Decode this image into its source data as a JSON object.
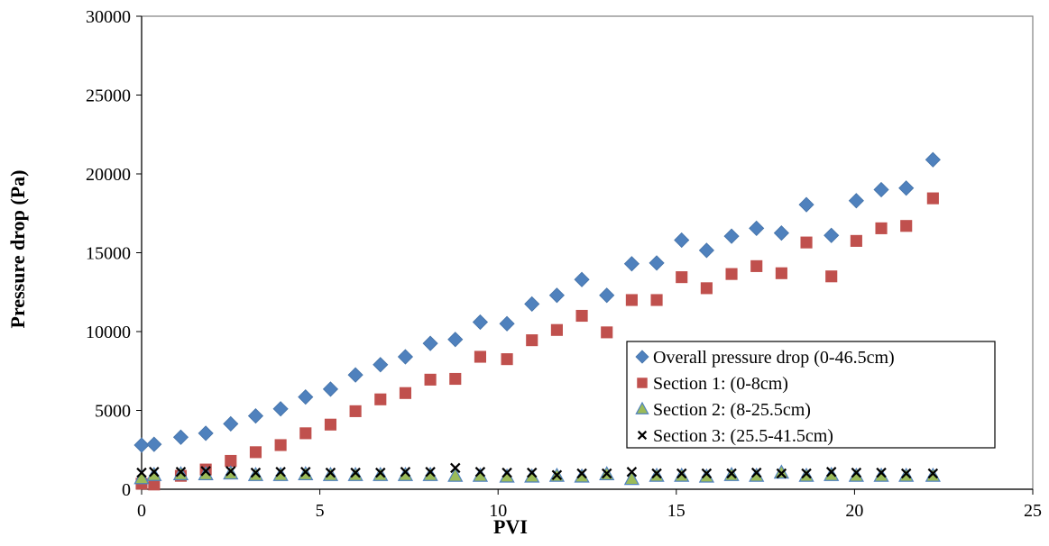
{
  "chart_data": {
    "type": "scatter",
    "title": "",
    "xlabel": "PVI",
    "ylabel": "Pressure drop (Pa)",
    "xlim": [
      0,
      25
    ],
    "ylim": [
      0,
      30000
    ],
    "xticks": [
      0,
      5,
      10,
      15,
      20,
      25
    ],
    "yticks": [
      0,
      5000,
      10000,
      15000,
      20000,
      25000,
      30000
    ],
    "grid": false,
    "legend_position": "lower-right",
    "series": [
      {
        "name": "Overall pressure drop (0-46.5cm)",
        "marker": "diamond",
        "color": "#4F81BD",
        "x": [
          0,
          0.35,
          1.1,
          1.8,
          2.5,
          3.2,
          3.9,
          4.6,
          5.3,
          6.0,
          6.7,
          7.4,
          8.1,
          8.8,
          9.5,
          10.25,
          10.95,
          11.65,
          12.35,
          13.05,
          13.75,
          14.45,
          15.15,
          15.85,
          16.55,
          17.25,
          17.95,
          18.65,
          19.35,
          20.05,
          20.75,
          21.45,
          22.2
        ],
        "y": [
          2800,
          2850,
          3300,
          3550,
          4150,
          4650,
          5100,
          5850,
          6350,
          7250,
          7900,
          8400,
          9250,
          9500,
          10600,
          10500,
          11750,
          12300,
          13300,
          12300,
          14300,
          14350,
          15800,
          15150,
          16050,
          16550,
          16250,
          18050,
          16100,
          18300,
          19000,
          19100,
          20900
        ]
      },
      {
        "name": "Section 1: (0-8cm)",
        "marker": "square",
        "color": "#C0504D",
        "x": [
          0,
          0.35,
          1.1,
          1.8,
          2.5,
          3.2,
          3.9,
          4.6,
          5.3,
          6.0,
          6.7,
          7.4,
          8.1,
          8.8,
          9.5,
          10.25,
          10.95,
          11.65,
          12.35,
          13.05,
          13.75,
          14.45,
          15.15,
          15.85,
          16.55,
          17.25,
          17.95,
          18.65,
          19.35,
          20.05,
          20.75,
          21.45,
          22.2
        ],
        "y": [
          350,
          300,
          850,
          1250,
          1800,
          2350,
          2800,
          3550,
          4100,
          4950,
          5700,
          6100,
          6950,
          7000,
          8400,
          8250,
          9450,
          10100,
          11000,
          9950,
          12000,
          12000,
          13450,
          12750,
          13650,
          14150,
          13700,
          15650,
          13500,
          15750,
          16550,
          16700,
          18450
        ]
      },
      {
        "name": "Section 2: (8-25.5cm)",
        "marker": "triangle",
        "color": "#9BBB59",
        "x": [
          0,
          0.35,
          1.1,
          1.8,
          2.5,
          3.2,
          3.9,
          4.6,
          5.3,
          6.0,
          6.7,
          7.4,
          8.1,
          8.8,
          9.5,
          10.25,
          10.95,
          11.65,
          12.35,
          13.05,
          13.75,
          14.45,
          15.15,
          15.85,
          16.55,
          17.25,
          17.95,
          18.65,
          19.35,
          20.05,
          20.75,
          21.45,
          22.2
        ],
        "y": [
          700,
          900,
          950,
          950,
          1000,
          900,
          900,
          950,
          900,
          900,
          900,
          900,
          900,
          850,
          850,
          800,
          800,
          850,
          800,
          950,
          650,
          850,
          850,
          800,
          900,
          850,
          1050,
          850,
          900,
          850,
          850,
          850,
          850
        ]
      },
      {
        "name": "Section 3: (25.5-41.5cm)",
        "marker": "x",
        "color": "#000000",
        "x": [
          0,
          0.35,
          1.1,
          1.8,
          2.5,
          3.2,
          3.9,
          4.6,
          5.3,
          6.0,
          6.7,
          7.4,
          8.1,
          8.8,
          9.5,
          10.25,
          10.95,
          11.65,
          12.35,
          13.05,
          13.75,
          14.45,
          15.15,
          15.85,
          16.55,
          17.25,
          17.95,
          18.65,
          19.35,
          20.05,
          20.75,
          21.45,
          22.2
        ],
        "y": [
          1050,
          1100,
          1100,
          1150,
          1150,
          1050,
          1100,
          1100,
          1050,
          1050,
          1050,
          1100,
          1100,
          1350,
          1100,
          1050,
          1050,
          900,
          1000,
          1000,
          1100,
          1000,
          1000,
          1000,
          1000,
          1050,
          1000,
          1000,
          1100,
          1050,
          1050,
          1000,
          1000
        ]
      }
    ]
  }
}
